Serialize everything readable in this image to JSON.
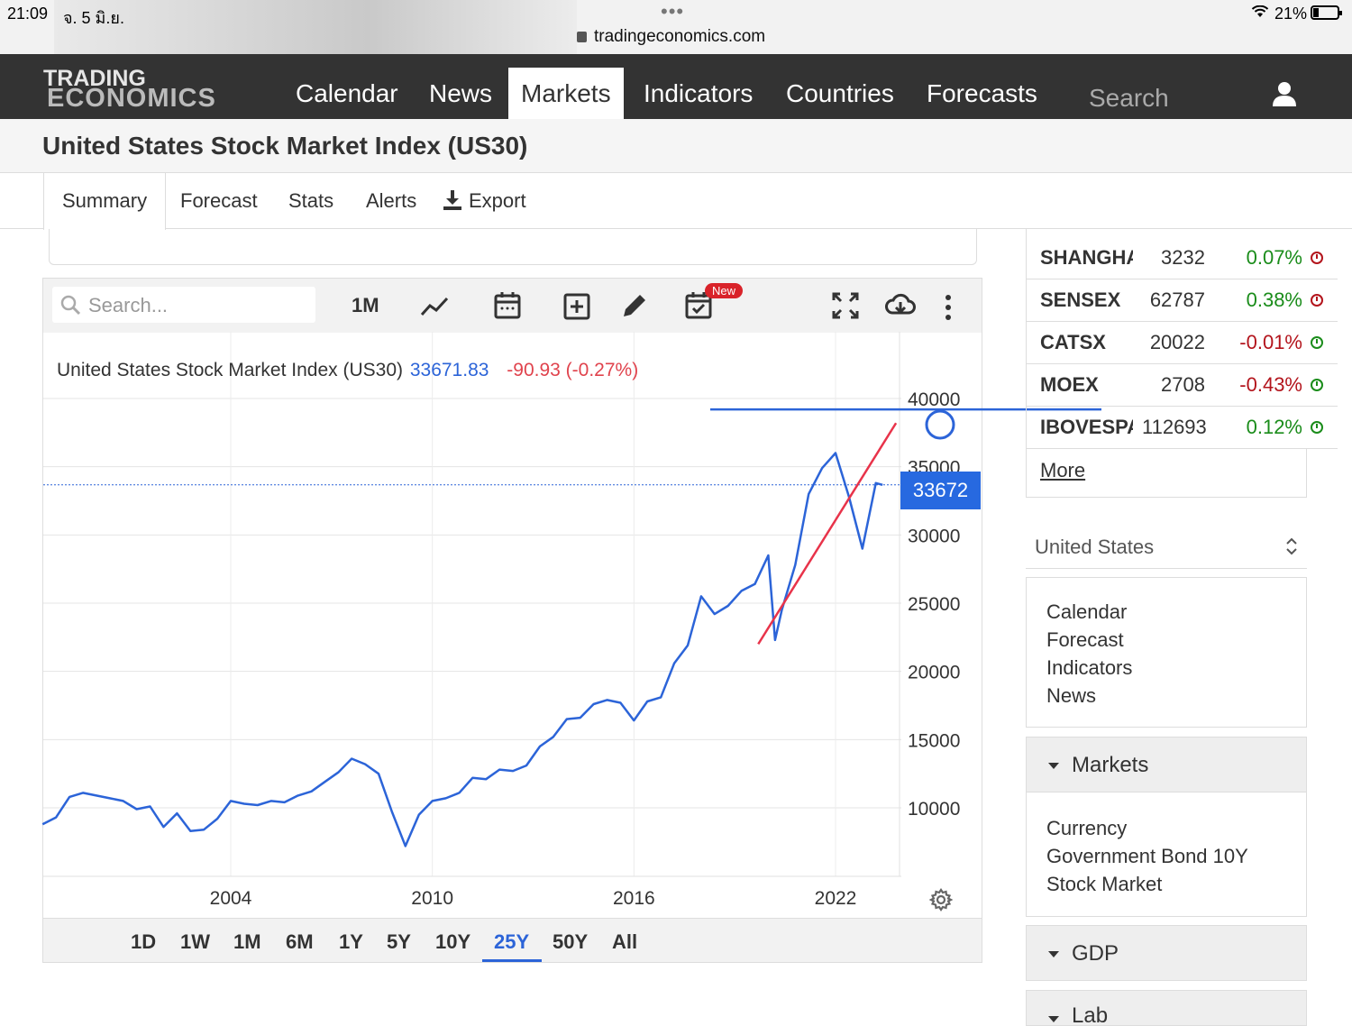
{
  "statusbar": {
    "time": "21:09",
    "date": "จ. 5 มิ.ย.",
    "url": "tradingeconomics.com",
    "battery": "21%"
  },
  "nav": {
    "logo_line1": "TRADING",
    "logo_line2": "ECONOMICS",
    "items": [
      "Calendar",
      "News",
      "Markets",
      "Indicators",
      "Countries",
      "Forecasts"
    ],
    "active": "Markets",
    "search_placeholder": "Search"
  },
  "page_title": "United States Stock Market Index (US30)",
  "tabs": [
    "Summary",
    "Forecast",
    "Stats",
    "Alerts",
    "Export"
  ],
  "active_tab": "Summary",
  "chart_toolbar": {
    "search_placeholder": "Search...",
    "interval": "1M",
    "new_badge": "New"
  },
  "chart_header": {
    "name": "United States Stock Market Index (US30)",
    "value": "33671.83",
    "change": "-90.93 (-0.27%)"
  },
  "price_tag": "33672",
  "ranges": [
    "1D",
    "1W",
    "1M",
    "6M",
    "1Y",
    "5Y",
    "10Y",
    "25Y",
    "50Y",
    "All"
  ],
  "active_range": "25Y",
  "chart_data": {
    "type": "line",
    "series": [
      {
        "x": [
          1998.4,
          1998.8,
          1999.2,
          1999.6,
          2000.0,
          2000.4,
          2000.8,
          2001.2,
          2001.6,
          2002.0,
          2002.4,
          2002.8,
          2003.2,
          2003.6,
          2004.0,
          2004.4,
          2004.8,
          2005.2,
          2005.6,
          2006.0,
          2006.4,
          2006.8,
          2007.2,
          2007.6,
          2008.0,
          2008.4,
          2008.8,
          2009.2,
          2009.6,
          2010.0,
          2010.4,
          2010.8,
          2011.2,
          2011.6,
          2012.0,
          2012.4,
          2012.8,
          2013.2,
          2013.6,
          2014.0,
          2014.4,
          2014.8,
          2015.2,
          2015.6,
          2016.0,
          2016.4,
          2016.8,
          2017.2,
          2017.6,
          2018.0,
          2018.4,
          2018.8,
          2019.2,
          2019.6,
          2020.0,
          2020.2,
          2020.4,
          2020.8,
          2021.2,
          2021.6,
          2022.0,
          2022.4,
          2022.8,
          2023.2,
          2023.4
        ],
        "y": [
          8800,
          9300,
          10800,
          11100,
          10900,
          10700,
          10500,
          9900,
          10100,
          8600,
          9600,
          8300,
          8400,
          9200,
          10500,
          10300,
          10200,
          10500,
          10400,
          10900,
          11200,
          11900,
          12600,
          13600,
          13200,
          12500,
          9700,
          7200,
          9500,
          10500,
          10700,
          11100,
          12200,
          12100,
          12800,
          12700,
          13100,
          14500,
          15200,
          16500,
          16600,
          17600,
          17900,
          17700,
          16400,
          17800,
          18100,
          20600,
          21900,
          25500,
          24200,
          24800,
          25900,
          26400,
          28500,
          22300,
          24500,
          27800,
          33000,
          34900,
          36000,
          32800,
          29000,
          33800,
          33672
        ]
      }
    ],
    "trendline": {
      "from": [
        2019.7,
        22000
      ],
      "to": [
        2023.8,
        38200
      ],
      "color": "#e8334a"
    },
    "hline": {
      "y": 39200,
      "color": "#2c64d8"
    },
    "last_value": 33672,
    "x_ticks": [
      "2004",
      "2010",
      "2016",
      "2022"
    ],
    "x_tick_values": [
      2004,
      2010,
      2016,
      2022
    ],
    "y_ticks": [
      "10000",
      "15000",
      "20000",
      "25000",
      "30000",
      "35000",
      "40000"
    ],
    "y_tick_values": [
      10000,
      15000,
      20000,
      25000,
      30000,
      35000,
      40000
    ],
    "xlim": [
      1998.4,
      2023.9
    ],
    "ylim": [
      5000,
      40000
    ],
    "grid": true,
    "line_color": "#2c64d8"
  },
  "markets": [
    {
      "name": "SHANGHAI",
      "value": "3232",
      "change": "0.07%",
      "dir": "up",
      "clock": "red"
    },
    {
      "name": "SENSEX",
      "value": "62787",
      "change": "0.38%",
      "dir": "up",
      "clock": "red"
    },
    {
      "name": "CATSX",
      "value": "20022",
      "change": "-0.01%",
      "dir": "dn",
      "clock": "green"
    },
    {
      "name": "MOEX",
      "value": "2708",
      "change": "-0.43%",
      "dir": "dn",
      "clock": "green"
    },
    {
      "name": "IBOVESPA",
      "value": "112693",
      "change": "0.12%",
      "dir": "up",
      "clock": "green"
    }
  ],
  "more_link": "More",
  "country_select": "United States",
  "sidebar_links": [
    "Calendar",
    "Forecast",
    "Indicators",
    "News"
  ],
  "markets_header": "Markets",
  "markets_links": [
    "Currency",
    "Government Bond 10Y",
    "Stock Market"
  ],
  "gdp_header": "GDP",
  "cut_off_text": "Lab"
}
